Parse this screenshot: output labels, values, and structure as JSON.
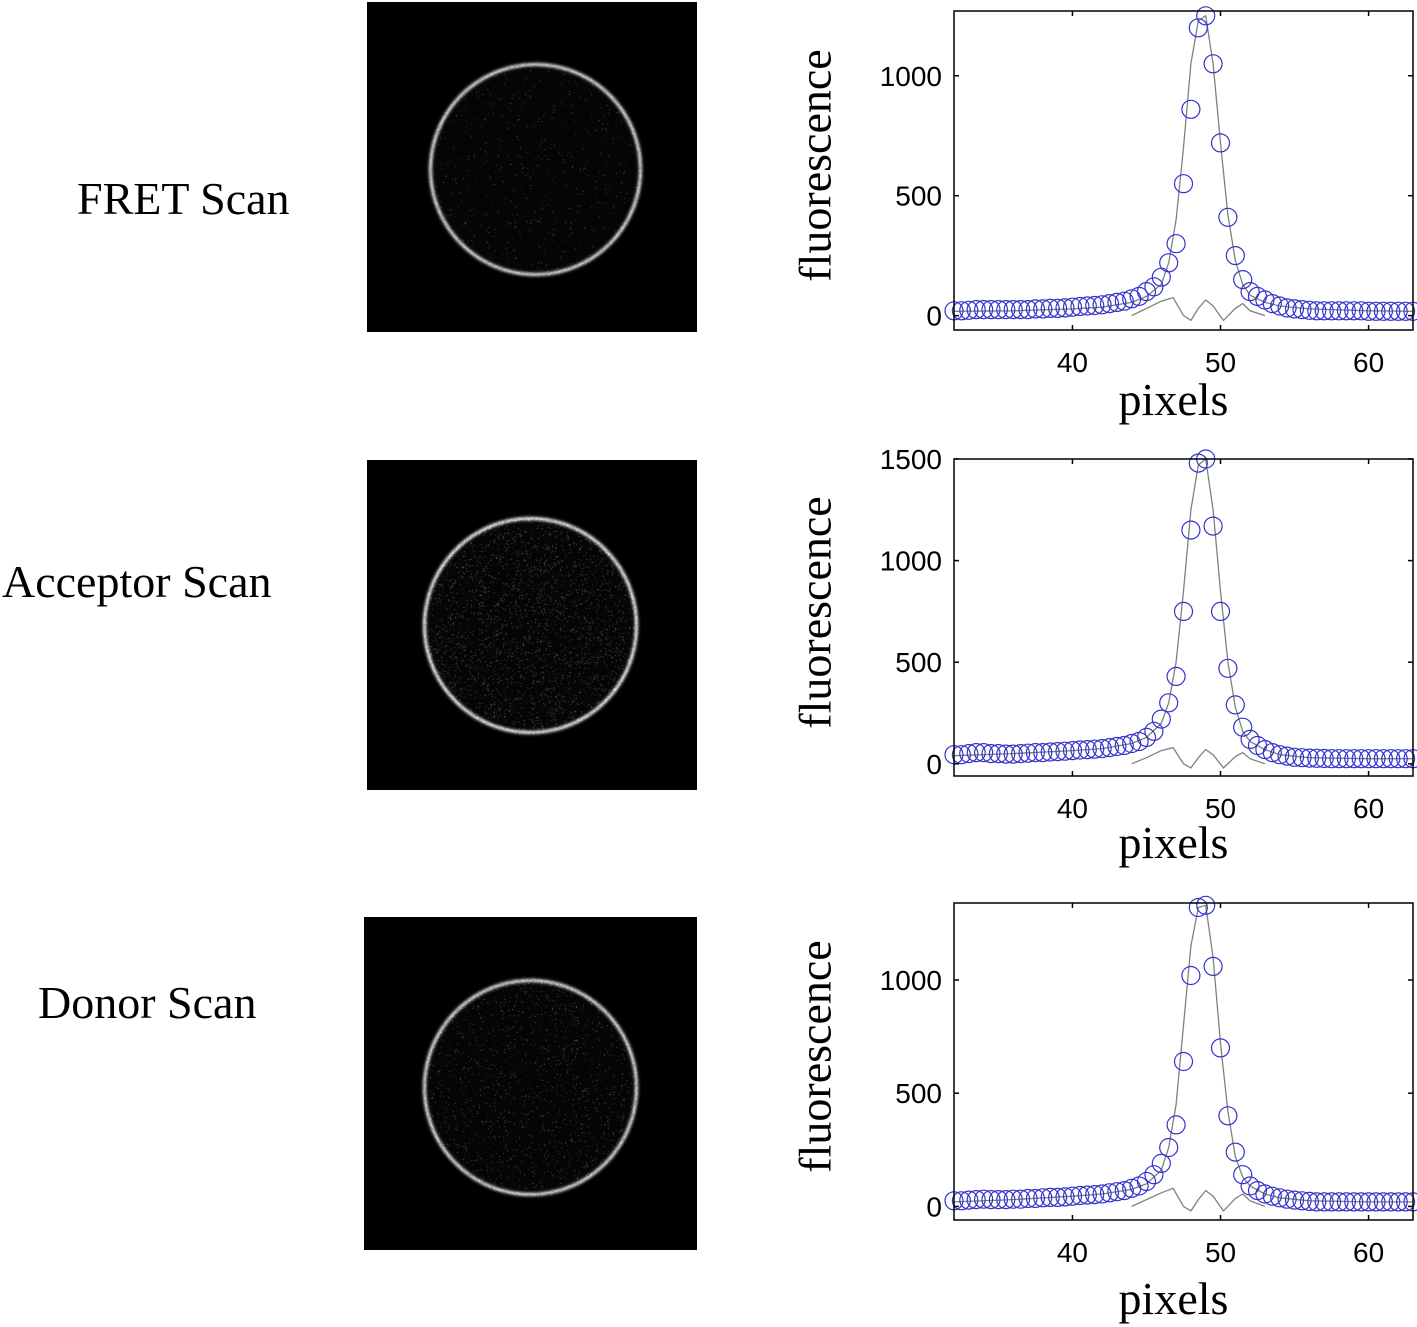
{
  "rows": [
    {
      "label": "FRET Scan",
      "ring": {
        "brightness": 0.85,
        "noise": 0.02
      },
      "chart": {
        "ymax_tick": 1000,
        "yticks": [
          0,
          500,
          1000
        ],
        "ytick_labels": [
          "0",
          "500",
          "1000"
        ],
        "ylim": [
          -60,
          1270
        ]
      }
    },
    {
      "label": "Acceptor Scan",
      "ring": {
        "brightness": 0.9,
        "noise": 0.1
      },
      "chart": {
        "yticks": [
          0,
          500,
          1000,
          1500
        ],
        "ytick_labels": [
          "0",
          "500",
          "1000",
          "1500"
        ],
        "ylim": [
          -60,
          1500
        ]
      }
    },
    {
      "label": "Donor Scan",
      "ring": {
        "brightness": 0.85,
        "noise": 0.05
      },
      "chart": {
        "yticks": [
          0,
          500,
          1000
        ],
        "ytick_labels": [
          "0",
          "500",
          "1000"
        ],
        "ylim": [
          -60,
          1340
        ]
      }
    }
  ],
  "chart_data": [
    {
      "type": "scatter",
      "panel": "FRET Scan",
      "xlabel": "pixels",
      "ylabel": "fluorescence",
      "xlim": [
        32,
        63
      ],
      "ylim": [
        -60,
        1270
      ],
      "xticks": [
        40,
        50,
        60
      ],
      "xtick_labels": [
        "40",
        "50",
        "60"
      ],
      "yticks": [
        0,
        500,
        1000
      ],
      "ytick_labels": [
        "0",
        "500",
        "1000"
      ],
      "grid": false,
      "series": [
        {
          "style": "markers",
          "marker": "circle",
          "color": "#3333cc",
          "x": [
            32,
            32.5,
            33,
            33.5,
            34,
            34.5,
            35,
            35.5,
            36,
            36.5,
            37,
            37.5,
            38,
            38.5,
            39,
            39.5,
            40,
            40.5,
            41,
            41.5,
            42,
            42.5,
            43,
            43.5,
            44,
            44.5,
            45,
            45.5,
            46,
            46.5,
            47,
            47.5,
            48,
            48.5,
            49,
            49.5,
            50,
            50.5,
            51,
            51.5,
            52,
            52.5,
            53,
            53.5,
            54,
            54.5,
            55,
            55.5,
            56,
            56.5,
            57,
            57.5,
            58,
            58.5,
            59,
            59.5,
            60,
            60.5,
            61,
            61.5,
            62,
            62.5,
            63
          ],
          "y": [
            20,
            20,
            22,
            25,
            25,
            25,
            25,
            25,
            25,
            25,
            25,
            28,
            28,
            30,
            30,
            32,
            35,
            38,
            40,
            42,
            45,
            50,
            55,
            60,
            70,
            80,
            100,
            120,
            160,
            220,
            300,
            550,
            860,
            1200,
            1250,
            1050,
            720,
            410,
            250,
            150,
            100,
            80,
            65,
            50,
            40,
            32,
            28,
            25,
            22,
            20,
            20,
            20,
            20,
            20,
            20,
            20,
            18,
            18,
            18,
            18,
            18,
            18,
            18
          ]
        },
        {
          "style": "line",
          "color": "#808080",
          "x": [
            32,
            36,
            40,
            42,
            44,
            45,
            46,
            46.5,
            47,
            47.5,
            48,
            48.5,
            49,
            49.5,
            50,
            50.5,
            51,
            51.5,
            52,
            53,
            54,
            56,
            60,
            63
          ],
          "y": [
            18,
            20,
            28,
            35,
            55,
            80,
            130,
            220,
            400,
            700,
            1050,
            1230,
            1250,
            1050,
            720,
            420,
            230,
            130,
            85,
            55,
            40,
            28,
            20,
            18
          ]
        },
        {
          "style": "line",
          "color": "#808080",
          "x": [
            44,
            45,
            46,
            46.8,
            47.5,
            48,
            48.5,
            49,
            49.5,
            50.2,
            51,
            51.5,
            52,
            53
          ],
          "y": [
            0,
            30,
            60,
            75,
            0,
            -20,
            30,
            65,
            40,
            -20,
            30,
            50,
            20,
            0
          ]
        }
      ]
    },
    {
      "type": "scatter",
      "panel": "Acceptor Scan",
      "xlabel": "pixels",
      "ylabel": "fluorescence",
      "xlim": [
        32,
        63
      ],
      "ylim": [
        -60,
        1500
      ],
      "xticks": [
        40,
        50,
        60
      ],
      "xtick_labels": [
        "40",
        "50",
        "60"
      ],
      "yticks": [
        0,
        500,
        1000,
        1500
      ],
      "ytick_labels": [
        "0",
        "500",
        "1000",
        "1500"
      ],
      "grid": false,
      "series": [
        {
          "style": "markers",
          "marker": "circle",
          "color": "#3333cc",
          "x": [
            32,
            32.5,
            33,
            33.5,
            34,
            34.5,
            35,
            35.5,
            36,
            36.5,
            37,
            37.5,
            38,
            38.5,
            39,
            39.5,
            40,
            40.5,
            41,
            41.5,
            42,
            42.5,
            43,
            43.5,
            44,
            44.5,
            45,
            45.5,
            46,
            46.5,
            47,
            47.5,
            48,
            48.5,
            49,
            49.5,
            50,
            50.5,
            51,
            51.5,
            52,
            52.5,
            53,
            53.5,
            54,
            54.5,
            55,
            55.5,
            56,
            56.5,
            57,
            57.5,
            58,
            58.5,
            59,
            59.5,
            60,
            60.5,
            61,
            61.5,
            62,
            62.5,
            63
          ],
          "y": [
            45,
            45,
            50,
            55,
            55,
            50,
            50,
            48,
            48,
            50,
            52,
            55,
            55,
            58,
            60,
            62,
            65,
            68,
            70,
            72,
            75,
            80,
            85,
            90,
            100,
            110,
            130,
            160,
            220,
            300,
            430,
            750,
            1150,
            1480,
            1500,
            1170,
            750,
            470,
            290,
            180,
            120,
            90,
            70,
            55,
            45,
            38,
            32,
            30,
            28,
            27,
            26,
            25,
            25,
            25,
            25,
            25,
            25,
            25,
            25,
            25,
            25,
            25,
            25
          ]
        },
        {
          "style": "line",
          "color": "#808080",
          "x": [
            32,
            36,
            40,
            42,
            44,
            45,
            46,
            46.5,
            47,
            47.5,
            48,
            48.5,
            49,
            49.5,
            50,
            50.5,
            51,
            51.5,
            52,
            53,
            54,
            56,
            60,
            63
          ],
          "y": [
            40,
            50,
            65,
            75,
            100,
            130,
            200,
            300,
            500,
            850,
            1250,
            1470,
            1500,
            1250,
            850,
            500,
            280,
            160,
            110,
            70,
            45,
            30,
            25,
            25
          ]
        },
        {
          "style": "line",
          "color": "#808080",
          "x": [
            44,
            45,
            46,
            46.8,
            47.5,
            48,
            48.5,
            49,
            49.5,
            50.2,
            51,
            51.5,
            52,
            53
          ],
          "y": [
            0,
            30,
            65,
            80,
            0,
            -20,
            30,
            70,
            45,
            -20,
            35,
            55,
            25,
            0
          ]
        }
      ]
    },
    {
      "type": "scatter",
      "panel": "Donor Scan",
      "xlabel": "pixels",
      "ylabel": "fluorescence",
      "xlim": [
        32,
        63
      ],
      "ylim": [
        -60,
        1340
      ],
      "xticks": [
        40,
        50,
        60
      ],
      "xtick_labels": [
        "40",
        "50",
        "60"
      ],
      "yticks": [
        0,
        500,
        1000
      ],
      "ytick_labels": [
        "0",
        "500",
        "1000"
      ],
      "grid": false,
      "series": [
        {
          "style": "markers",
          "marker": "circle",
          "color": "#3333cc",
          "x": [
            32,
            32.5,
            33,
            33.5,
            34,
            34.5,
            35,
            35.5,
            36,
            36.5,
            37,
            37.5,
            38,
            38.5,
            39,
            39.5,
            40,
            40.5,
            41,
            41.5,
            42,
            42.5,
            43,
            43.5,
            44,
            44.5,
            45,
            45.5,
            46,
            46.5,
            47,
            47.5,
            48,
            48.5,
            49,
            49.5,
            50,
            50.5,
            51,
            51.5,
            52,
            52.5,
            53,
            53.5,
            54,
            54.5,
            55,
            55.5,
            56,
            56.5,
            57,
            57.5,
            58,
            58.5,
            59,
            59.5,
            60,
            60.5,
            61,
            61.5,
            62,
            62.5,
            63
          ],
          "y": [
            25,
            25,
            28,
            30,
            32,
            30,
            30,
            30,
            32,
            32,
            35,
            35,
            38,
            40,
            40,
            42,
            45,
            48,
            50,
            52,
            55,
            60,
            65,
            70,
            80,
            90,
            110,
            140,
            190,
            260,
            360,
            640,
            1020,
            1320,
            1330,
            1060,
            700,
            400,
            240,
            140,
            90,
            70,
            55,
            45,
            38,
            32,
            28,
            25,
            22,
            20,
            20,
            20,
            20,
            20,
            20,
            20,
            20,
            20,
            20,
            20,
            20,
            20,
            20
          ]
        },
        {
          "style": "line",
          "color": "#808080",
          "x": [
            32,
            36,
            40,
            42,
            44,
            45,
            46,
            46.5,
            47,
            47.5,
            48,
            48.5,
            49,
            49.5,
            50,
            50.5,
            51,
            51.5,
            52,
            53,
            54,
            56,
            60,
            63
          ],
          "y": [
            20,
            30,
            45,
            55,
            75,
            100,
            160,
            260,
            450,
            800,
            1150,
            1320,
            1330,
            1100,
            720,
            420,
            220,
            130,
            90,
            55,
            38,
            25,
            20,
            20
          ]
        },
        {
          "style": "line",
          "color": "#808080",
          "x": [
            44,
            45,
            46,
            46.8,
            47.5,
            48,
            48.5,
            49,
            49.5,
            50.2,
            51,
            51.5,
            52,
            53
          ],
          "y": [
            0,
            30,
            60,
            80,
            0,
            -20,
            30,
            70,
            45,
            -20,
            35,
            55,
            25,
            0
          ]
        }
      ]
    }
  ],
  "colors": {
    "marker": "#3333cc",
    "fit_line": "#808080",
    "axis": "#000000",
    "scan_background": "#000000"
  }
}
